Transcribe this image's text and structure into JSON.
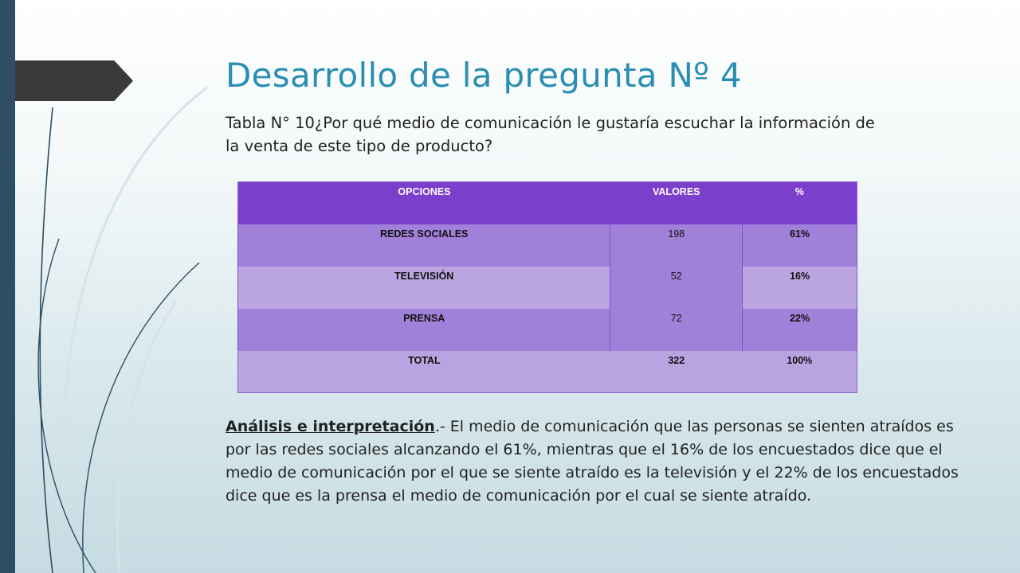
{
  "title": "Desarrollo de la pregunta Nº 4",
  "subtitle": "Tabla N° 10¿Por qué medio de comunicación le gustaría escuchar la información de la venta de este tipo de producto?",
  "table": {
    "headers": [
      "OPCIONES",
      "VALORES",
      "%"
    ],
    "rows": [
      {
        "option": "REDES SOCIALES",
        "value": "198",
        "percent": "61%"
      },
      {
        "option": "TELEVISIÓN",
        "value": "52",
        "percent": "16%"
      },
      {
        "option": "PRENSA",
        "value": "72",
        "percent": "22%"
      }
    ],
    "total": {
      "label": "TOTAL",
      "value": "322",
      "percent": "100%"
    }
  },
  "analysis": {
    "lead": "Análisis e interpretación",
    "text": ".- El medio de comunicación que las personas se sienten atraídos es por las redes sociales alcanzando el 61%, mientras que el 16% de los encuestados dice que el medio de comunicación por el que se siente atraído es la televisión y el 22% de los encuestados dice que es la prensa el medio de comunicación por el cual se siente atraído."
  },
  "colors": {
    "left_bar": "#2d4e63",
    "flag": "#3a3a3a",
    "title": "#2a8eb3",
    "table_header": "#7b3fcc",
    "table_row_dark": "#a180da",
    "table_row_light": "#bba6e2"
  }
}
